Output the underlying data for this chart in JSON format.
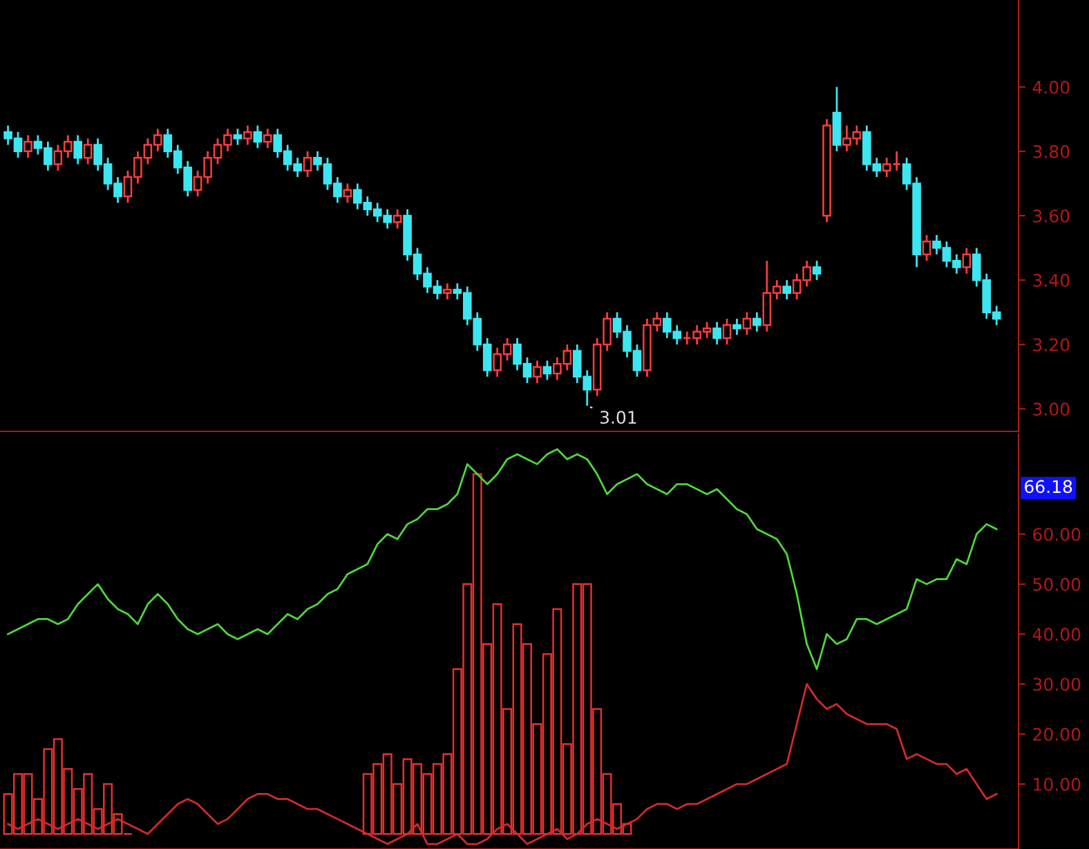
{
  "chart_data": [
    {
      "type": "candlestick",
      "categories": [
        null,
        null,
        null,
        null,
        null,
        null,
        null,
        null,
        null,
        null,
        null,
        null,
        null,
        null,
        null,
        null,
        null,
        null,
        null,
        null,
        null,
        null,
        null,
        null,
        null,
        null,
        null,
        null,
        null,
        null,
        null,
        null,
        null,
        null,
        null,
        null,
        null,
        null,
        null,
        null,
        null,
        null,
        null,
        null,
        null,
        null,
        null,
        null,
        null,
        null,
        null,
        null,
        null,
        null,
        null,
        null,
        null,
        null,
        null,
        null,
        null,
        null,
        null,
        null,
        null,
        null,
        null,
        null,
        null,
        null,
        null,
        null,
        null,
        null,
        null,
        null,
        null,
        null,
        null,
        null,
        null,
        null,
        null,
        null,
        null,
        null,
        null,
        null,
        null,
        null,
        null,
        null,
        null,
        null,
        null,
        null,
        null,
        null,
        null,
        null
      ],
      "ohlc": [
        [
          3.86,
          3.88,
          3.82,
          3.84
        ],
        [
          3.84,
          3.86,
          3.78,
          3.8
        ],
        [
          3.8,
          3.85,
          3.78,
          3.83
        ],
        [
          3.83,
          3.85,
          3.79,
          3.81
        ],
        [
          3.81,
          3.83,
          3.74,
          3.76
        ],
        [
          3.76,
          3.82,
          3.74,
          3.8
        ],
        [
          3.8,
          3.85,
          3.78,
          3.83
        ],
        [
          3.83,
          3.85,
          3.76,
          3.78
        ],
        [
          3.78,
          3.84,
          3.76,
          3.82
        ],
        [
          3.82,
          3.84,
          3.74,
          3.76
        ],
        [
          3.76,
          3.78,
          3.68,
          3.7
        ],
        [
          3.7,
          3.72,
          3.64,
          3.66
        ],
        [
          3.66,
          3.74,
          3.64,
          3.72
        ],
        [
          3.72,
          3.8,
          3.7,
          3.78
        ],
        [
          3.78,
          3.84,
          3.76,
          3.82
        ],
        [
          3.82,
          3.87,
          3.8,
          3.85
        ],
        [
          3.85,
          3.87,
          3.78,
          3.8
        ],
        [
          3.8,
          3.82,
          3.73,
          3.75
        ],
        [
          3.75,
          3.77,
          3.66,
          3.68
        ],
        [
          3.68,
          3.74,
          3.66,
          3.72
        ],
        [
          3.72,
          3.8,
          3.7,
          3.78
        ],
        [
          3.78,
          3.84,
          3.76,
          3.82
        ],
        [
          3.82,
          3.87,
          3.8,
          3.85
        ],
        [
          3.85,
          3.87,
          3.82,
          3.84
        ],
        [
          3.84,
          3.88,
          3.82,
          3.86
        ],
        [
          3.86,
          3.88,
          3.81,
          3.83
        ],
        [
          3.83,
          3.87,
          3.81,
          3.85
        ],
        [
          3.85,
          3.87,
          3.78,
          3.8
        ],
        [
          3.8,
          3.82,
          3.74,
          3.76
        ],
        [
          3.76,
          3.78,
          3.72,
          3.74
        ],
        [
          3.74,
          3.8,
          3.72,
          3.78
        ],
        [
          3.78,
          3.8,
          3.74,
          3.76
        ],
        [
          3.76,
          3.78,
          3.68,
          3.7
        ],
        [
          3.7,
          3.72,
          3.64,
          3.66
        ],
        [
          3.66,
          3.7,
          3.64,
          3.68
        ],
        [
          3.68,
          3.7,
          3.62,
          3.64
        ],
        [
          3.64,
          3.66,
          3.6,
          3.62
        ],
        [
          3.62,
          3.64,
          3.58,
          3.6
        ],
        [
          3.6,
          3.62,
          3.56,
          3.58
        ],
        [
          3.58,
          3.62,
          3.56,
          3.6
        ],
        [
          3.6,
          3.62,
          3.46,
          3.48
        ],
        [
          3.48,
          3.5,
          3.4,
          3.42
        ],
        [
          3.42,
          3.44,
          3.36,
          3.38
        ],
        [
          3.38,
          3.4,
          3.34,
          3.36
        ],
        [
          3.36,
          3.39,
          3.34,
          3.37
        ],
        [
          3.37,
          3.39,
          3.34,
          3.36
        ],
        [
          3.36,
          3.38,
          3.26,
          3.28
        ],
        [
          3.28,
          3.3,
          3.18,
          3.2
        ],
        [
          3.2,
          3.22,
          3.1,
          3.12
        ],
        [
          3.12,
          3.19,
          3.1,
          3.17
        ],
        [
          3.17,
          3.22,
          3.15,
          3.2
        ],
        [
          3.2,
          3.22,
          3.12,
          3.14
        ],
        [
          3.14,
          3.16,
          3.08,
          3.1
        ],
        [
          3.1,
          3.15,
          3.08,
          3.13
        ],
        [
          3.13,
          3.15,
          3.09,
          3.11
        ],
        [
          3.11,
          3.16,
          3.09,
          3.14
        ],
        [
          3.14,
          3.2,
          3.12,
          3.18
        ],
        [
          3.18,
          3.2,
          3.08,
          3.1
        ],
        [
          3.1,
          3.12,
          3.01,
          3.06
        ],
        [
          3.06,
          3.22,
          3.04,
          3.2
        ],
        [
          3.2,
          3.3,
          3.18,
          3.28
        ],
        [
          3.28,
          3.3,
          3.22,
          3.24
        ],
        [
          3.24,
          3.26,
          3.16,
          3.18
        ],
        [
          3.18,
          3.2,
          3.1,
          3.12
        ],
        [
          3.12,
          3.28,
          3.1,
          3.26
        ],
        [
          3.26,
          3.3,
          3.24,
          3.28
        ],
        [
          3.28,
          3.3,
          3.22,
          3.24
        ],
        [
          3.24,
          3.26,
          3.2,
          3.22
        ],
        [
          3.22,
          3.24,
          3.2,
          3.22
        ],
        [
          3.22,
          3.26,
          3.2,
          3.24
        ],
        [
          3.24,
          3.27,
          3.22,
          3.25
        ],
        [
          3.25,
          3.27,
          3.2,
          3.22
        ],
        [
          3.22,
          3.28,
          3.2,
          3.26
        ],
        [
          3.26,
          3.28,
          3.23,
          3.25
        ],
        [
          3.25,
          3.3,
          3.23,
          3.28
        ],
        [
          3.28,
          3.3,
          3.24,
          3.26
        ],
        [
          3.26,
          3.46,
          3.24,
          3.36
        ],
        [
          3.36,
          3.4,
          3.34,
          3.38
        ],
        [
          3.38,
          3.4,
          3.34,
          3.36
        ],
        [
          3.36,
          3.42,
          3.34,
          3.4
        ],
        [
          3.4,
          3.46,
          3.38,
          3.44
        ],
        [
          3.44,
          3.46,
          3.4,
          3.42
        ],
        [
          3.6,
          3.9,
          3.58,
          3.88
        ],
        [
          3.92,
          4.0,
          3.8,
          3.82
        ],
        [
          3.82,
          3.88,
          3.8,
          3.84
        ],
        [
          3.84,
          3.88,
          3.82,
          3.86
        ],
        [
          3.86,
          3.88,
          3.74,
          3.76
        ],
        [
          3.76,
          3.78,
          3.72,
          3.74
        ],
        [
          3.74,
          3.78,
          3.72,
          3.76
        ],
        [
          3.76,
          3.8,
          3.74,
          3.76
        ],
        [
          3.76,
          3.78,
          3.68,
          3.7
        ],
        [
          3.7,
          3.72,
          3.44,
          3.48
        ],
        [
          3.48,
          3.54,
          3.46,
          3.52
        ],
        [
          3.52,
          3.54,
          3.48,
          3.5
        ],
        [
          3.5,
          3.52,
          3.44,
          3.46
        ],
        [
          3.46,
          3.48,
          3.42,
          3.44
        ],
        [
          3.44,
          3.5,
          3.42,
          3.48
        ],
        [
          3.48,
          3.5,
          3.38,
          3.4
        ],
        [
          3.4,
          3.42,
          3.28,
          3.3
        ],
        [
          3.3,
          3.32,
          3.26,
          3.28
        ]
      ],
      "ylim": [
        2.93,
        4.27
      ],
      "yticks": [
        {
          "value": 3.0,
          "label": "3.00"
        },
        {
          "value": 3.2,
          "label": "3.20"
        },
        {
          "value": 3.4,
          "label": "3.40"
        },
        {
          "value": 3.6,
          "label": "3.60"
        },
        {
          "value": 3.8,
          "label": "3.80"
        },
        {
          "value": 4.0,
          "label": "4.00"
        }
      ],
      "tick_labels": "y",
      "annotations": [
        "3.01"
      ]
    },
    {
      "type": "line",
      "categories": [
        null,
        null,
        null,
        null,
        null,
        null,
        null,
        null,
        null,
        null,
        null,
        null,
        null,
        null,
        null,
        null,
        null,
        null,
        null,
        null,
        null,
        null,
        null,
        null,
        null,
        null,
        null,
        null,
        null,
        null,
        null,
        null,
        null,
        null,
        null,
        null,
        null,
        null,
        null,
        null,
        null,
        null,
        null,
        null,
        null,
        null,
        null,
        null,
        null,
        null,
        null,
        null,
        null,
        null,
        null,
        null,
        null,
        null,
        null,
        null,
        null,
        null,
        null,
        null,
        null,
        null,
        null,
        null,
        null,
        null,
        null,
        null,
        null,
        null,
        null,
        null,
        null,
        null,
        null,
        null,
        null,
        null,
        null,
        null,
        null,
        null,
        null,
        null,
        null,
        null,
        null,
        null,
        null,
        null,
        null,
        null,
        null,
        null,
        null,
        null
      ],
      "series": [
        {
          "type": "bar",
          "color": "#e8302c",
          "values": [
            8,
            12,
            12,
            7,
            17,
            19,
            13,
            9,
            12,
            5,
            10,
            4,
            0,
            null,
            null,
            null,
            null,
            null,
            null,
            null,
            null,
            null,
            null,
            null,
            null,
            null,
            null,
            null,
            null,
            null,
            null,
            null,
            null,
            null,
            null,
            null,
            12,
            14,
            16,
            10,
            15,
            14,
            12,
            14,
            16,
            33,
            50,
            72,
            38,
            46,
            25,
            42,
            38,
            22,
            36,
            45,
            18,
            50,
            50,
            25,
            12,
            6,
            2,
            null,
            null,
            null,
            null,
            null,
            null,
            null,
            null,
            null,
            null,
            null,
            null,
            null,
            null,
            null,
            null,
            null,
            null,
            null,
            null,
            null,
            null,
            null,
            null,
            null,
            null,
            null,
            null,
            null,
            null,
            null,
            null,
            null,
            null,
            null,
            null,
            null
          ]
        },
        {
          "color": "#4ed83a",
          "values": [
            40,
            41,
            42,
            43,
            43,
            42,
            43,
            46,
            48,
            50,
            47,
            45,
            44,
            42,
            46,
            48,
            46,
            43,
            41,
            40,
            41,
            42,
            40,
            39,
            40,
            41,
            40,
            42,
            44,
            43,
            45,
            46,
            48,
            49,
            52,
            53,
            54,
            58,
            60,
            59,
            62,
            63,
            65,
            65,
            66,
            68,
            74,
            72,
            70,
            72,
            75,
            76,
            75,
            74,
            76,
            77,
            75,
            76,
            75,
            72,
            68,
            70,
            71,
            72,
            70,
            69,
            68,
            70,
            70,
            69,
            68,
            69,
            67,
            65,
            64,
            61,
            60,
            59,
            56,
            48,
            38,
            33,
            40,
            38,
            39,
            43,
            43,
            42,
            43,
            44,
            45,
            51,
            50,
            51,
            51,
            55,
            54,
            60,
            62,
            61
          ]
        },
        {
          "color": "#d42a2a",
          "values": [
            2,
            1,
            2,
            3,
            2,
            1,
            2,
            3,
            2,
            1,
            2,
            3,
            2,
            1,
            0,
            2,
            4,
            6,
            7,
            6,
            4,
            2,
            3,
            5,
            7,
            8,
            8,
            7,
            7,
            6,
            5,
            5,
            4,
            3,
            2,
            1,
            0,
            -1,
            -2,
            -1,
            0,
            2,
            -2,
            -2,
            -1,
            0,
            -2,
            -2,
            -1,
            1,
            2,
            0,
            -2,
            -1,
            0,
            1,
            -1,
            0,
            2,
            3,
            2,
            1,
            2,
            3,
            5,
            6,
            6,
            5,
            6,
            6,
            7,
            8,
            9,
            10,
            10,
            11,
            12,
            13,
            14,
            22,
            30,
            27,
            25,
            26,
            24,
            23,
            22,
            22,
            22,
            21,
            15,
            16,
            15,
            14,
            14,
            12,
            13,
            10,
            7,
            8
          ]
        }
      ],
      "ylim": [
        -3,
        80
      ],
      "yticks": [
        {
          "value": 10,
          "label": "10.00"
        },
        {
          "value": 20,
          "label": "20.00"
        },
        {
          "value": 30,
          "label": "30.00"
        },
        {
          "value": 40,
          "label": "40.00"
        },
        {
          "value": 50,
          "label": "50.00"
        },
        {
          "value": 60,
          "label": "60.00"
        }
      ],
      "tick_labels": "y",
      "annotations": [
        "66.18"
      ]
    }
  ]
}
